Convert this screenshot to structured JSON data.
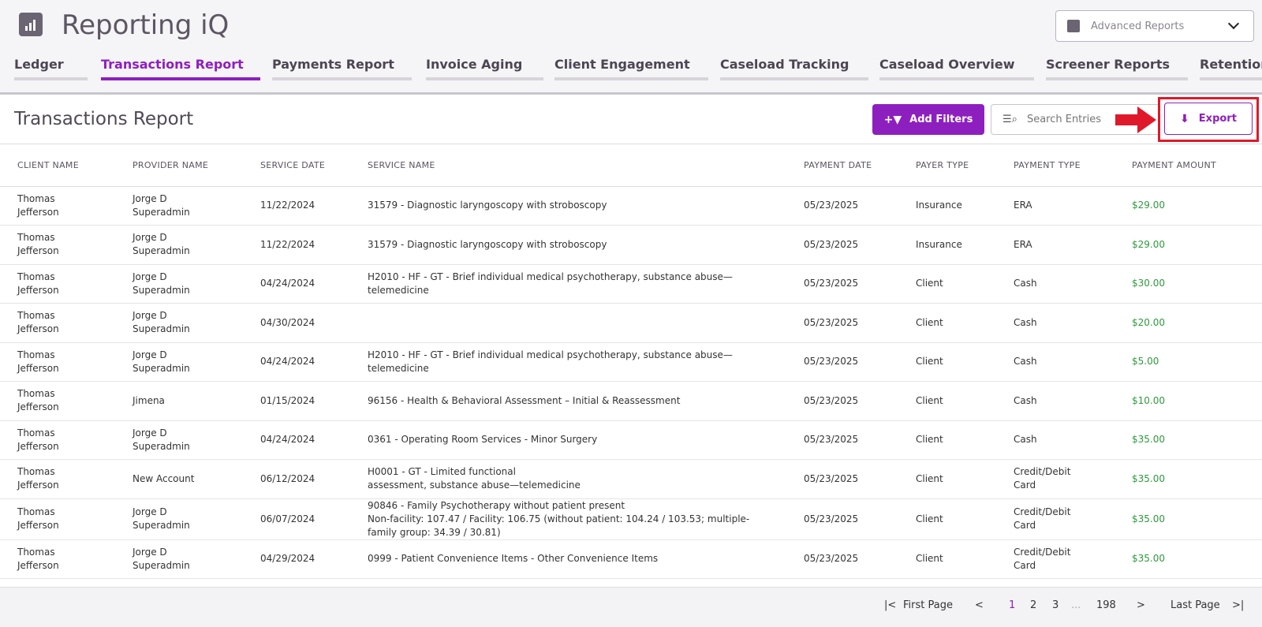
{
  "app": {
    "title": "Reporting iQ",
    "logo_icon": "bar-chart-icon"
  },
  "report_select": {
    "value": "Advanced Reports"
  },
  "tabs": [
    {
      "label": "Ledger"
    },
    {
      "label": "Transactions Report",
      "active": true
    },
    {
      "label": "Payments Report"
    },
    {
      "label": "Invoice Aging"
    },
    {
      "label": "Client Engagement"
    },
    {
      "label": "Caseload Tracking"
    },
    {
      "label": "Caseload Overview"
    },
    {
      "label": "Screener Reports"
    },
    {
      "label": "Retention"
    }
  ],
  "toolbar": {
    "title": "Transactions Report",
    "add_filters_label": "Add Filters",
    "search_placeholder": "Search Entries",
    "export_label": "Export",
    "accent": "#8e1fbf",
    "highlight": "#e0192a"
  },
  "table": {
    "headers": [
      "CLIENT NAME",
      "PROVIDER NAME",
      "SERVICE DATE",
      "SERVICE NAME",
      "PAYMENT DATE",
      "PAYER TYPE",
      "PAYMENT TYPE",
      "PAYMENT AMOUNT"
    ],
    "rows": [
      [
        "Thomas\nJefferson",
        "Jorge D\nSuperadmin",
        "11/22/2024",
        "31579 - Diagnostic laryngoscopy with stroboscopy",
        "05/23/2025",
        "Insurance",
        "ERA",
        "$29.00"
      ],
      [
        "Thomas\nJefferson",
        "Jorge D\nSuperadmin",
        "11/22/2024",
        "31579 - Diagnostic laryngoscopy with stroboscopy",
        "05/23/2025",
        "Insurance",
        "ERA",
        "$29.00"
      ],
      [
        "Thomas\nJefferson",
        "Jorge D\nSuperadmin",
        "04/24/2024",
        "H2010 - HF - GT - Brief individual medical psychotherapy, substance abuse—\ntelemedicine",
        "05/23/2025",
        "Client",
        "Cash",
        "$30.00"
      ],
      [
        "Thomas\nJefferson",
        "Jorge D\nSuperadmin",
        "04/30/2024",
        "",
        "05/23/2025",
        "Client",
        "Cash",
        "$20.00"
      ],
      [
        "Thomas\nJefferson",
        "Jorge D\nSuperadmin",
        "04/24/2024",
        "H2010 - HF - GT - Brief individual medical psychotherapy, substance abuse—\ntelemedicine",
        "05/23/2025",
        "Client",
        "Cash",
        "$5.00"
      ],
      [
        "Thomas\nJefferson",
        "Jimena",
        "01/15/2024",
        "96156 - Health & Behavioral Assessment – Initial & Reassessment",
        "05/23/2025",
        "Client",
        "Cash",
        "$10.00"
      ],
      [
        "Thomas\nJefferson",
        "Jorge D\nSuperadmin",
        "04/24/2024",
        "0361 - Operating Room Services - Minor Surgery",
        "05/23/2025",
        "Client",
        "Cash",
        "$35.00"
      ],
      [
        "Thomas\nJefferson",
        "New Account",
        "06/12/2024",
        "H0001 - GT - Limited functional\nassessment, substance abuse—telemedicine",
        "05/23/2025",
        "Client",
        "Credit/Debit\nCard",
        "$35.00"
      ],
      [
        "Thomas\nJefferson",
        "Jorge D\nSuperadmin",
        "06/07/2024",
        "90846 - Family Psychotherapy without patient present\nNon-facility: 107.47 / Facility: 106.75 (without patient: 104.24 / 103.53; multiple-\nfamily group: 34.39 / 30.81)",
        "05/23/2025",
        "Client",
        "Credit/Debit\nCard",
        "$35.00"
      ],
      [
        "Thomas\nJefferson",
        "Jorge D\nSuperadmin",
        "04/29/2024",
        "0999 - Patient Convenience Items - Other Convenience Items",
        "05/23/2025",
        "Client",
        "Credit/Debit\nCard",
        "$35.00"
      ]
    ]
  },
  "pagination": {
    "first_label": "First Page",
    "last_label": "Last Page",
    "pages": [
      "1",
      "2",
      "3",
      "...",
      "198"
    ],
    "current": "1"
  }
}
